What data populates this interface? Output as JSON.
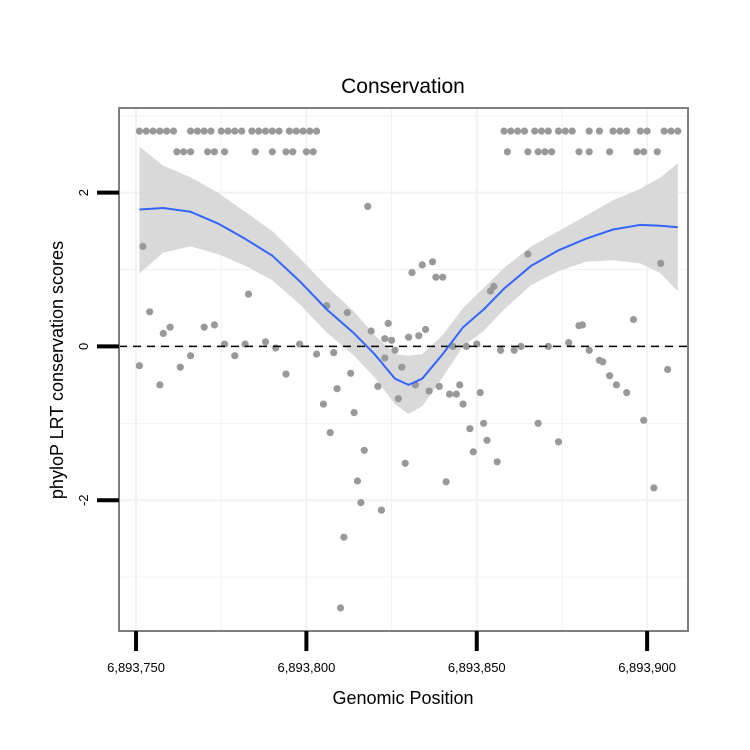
{
  "chart_data": {
    "type": "scatter",
    "title": "Conservation",
    "xlabel": "Genomic Position",
    "ylabel": "phyloP LRT conservation scores",
    "xlim": [
      6893745,
      6893912
    ],
    "ylim": [
      -3.7,
      3.1
    ],
    "x_ticks": [
      6893750,
      6893800,
      6893850,
      6893900
    ],
    "x_tick_labels": [
      "6,893,750",
      "6,893,800",
      "6,893,850",
      "6,893,900"
    ],
    "y_ticks": [
      -2,
      0,
      2
    ],
    "y_tick_labels": [
      "-2",
      "0",
      "2"
    ],
    "reference_line_y": 0,
    "colors": {
      "points": "#999999",
      "smooth_line": "#3366ff",
      "confidence_band": "#d9d9d9",
      "reference_line": "#000000",
      "panel_border": "#7f7f7f",
      "grid": "#f2f2f2"
    },
    "points": [
      {
        "x": 6893751,
        "y": 2.8
      },
      {
        "x": 6893753,
        "y": 2.8
      },
      {
        "x": 6893755,
        "y": 2.8
      },
      {
        "x": 6893757,
        "y": 2.8
      },
      {
        "x": 6893759,
        "y": 2.8
      },
      {
        "x": 6893761,
        "y": 2.8
      },
      {
        "x": 6893766,
        "y": 2.8
      },
      {
        "x": 6893768,
        "y": 2.8
      },
      {
        "x": 6893770,
        "y": 2.8
      },
      {
        "x": 6893772,
        "y": 2.8
      },
      {
        "x": 6893775,
        "y": 2.8
      },
      {
        "x": 6893777,
        "y": 2.8
      },
      {
        "x": 6893779,
        "y": 2.8
      },
      {
        "x": 6893781,
        "y": 2.8
      },
      {
        "x": 6893784,
        "y": 2.8
      },
      {
        "x": 6893786,
        "y": 2.8
      },
      {
        "x": 6893788,
        "y": 2.8
      },
      {
        "x": 6893790,
        "y": 2.8
      },
      {
        "x": 6893792,
        "y": 2.8
      },
      {
        "x": 6893795,
        "y": 2.8
      },
      {
        "x": 6893797,
        "y": 2.8
      },
      {
        "x": 6893799,
        "y": 2.8
      },
      {
        "x": 6893801,
        "y": 2.8
      },
      {
        "x": 6893803,
        "y": 2.8
      },
      {
        "x": 6893762,
        "y": 2.53
      },
      {
        "x": 6893764,
        "y": 2.53
      },
      {
        "x": 6893766,
        "y": 2.53
      },
      {
        "x": 6893771,
        "y": 2.53
      },
      {
        "x": 6893773,
        "y": 2.53
      },
      {
        "x": 6893776,
        "y": 2.53
      },
      {
        "x": 6893785,
        "y": 2.53
      },
      {
        "x": 6893790,
        "y": 2.53
      },
      {
        "x": 6893794,
        "y": 2.53
      },
      {
        "x": 6893796,
        "y": 2.53
      },
      {
        "x": 6893800,
        "y": 2.53
      },
      {
        "x": 6893802,
        "y": 2.53
      },
      {
        "x": 6893858,
        "y": 2.8
      },
      {
        "x": 6893860,
        "y": 2.8
      },
      {
        "x": 6893862,
        "y": 2.8
      },
      {
        "x": 6893864,
        "y": 2.8
      },
      {
        "x": 6893867,
        "y": 2.8
      },
      {
        "x": 6893869,
        "y": 2.8
      },
      {
        "x": 6893871,
        "y": 2.8
      },
      {
        "x": 6893874,
        "y": 2.8
      },
      {
        "x": 6893876,
        "y": 2.8
      },
      {
        "x": 6893878,
        "y": 2.8
      },
      {
        "x": 6893883,
        "y": 2.8
      },
      {
        "x": 6893886,
        "y": 2.8
      },
      {
        "x": 6893890,
        "y": 2.8
      },
      {
        "x": 6893892,
        "y": 2.8
      },
      {
        "x": 6893894,
        "y": 2.8
      },
      {
        "x": 6893898,
        "y": 2.8
      },
      {
        "x": 6893900,
        "y": 2.8
      },
      {
        "x": 6893905,
        "y": 2.8
      },
      {
        "x": 6893907,
        "y": 2.8
      },
      {
        "x": 6893909,
        "y": 2.8
      },
      {
        "x": 6893859,
        "y": 2.53
      },
      {
        "x": 6893865,
        "y": 2.53
      },
      {
        "x": 6893868,
        "y": 2.53
      },
      {
        "x": 6893870,
        "y": 2.53
      },
      {
        "x": 6893872,
        "y": 2.53
      },
      {
        "x": 6893880,
        "y": 2.53
      },
      {
        "x": 6893883,
        "y": 2.53
      },
      {
        "x": 6893889,
        "y": 2.53
      },
      {
        "x": 6893897,
        "y": 2.53
      },
      {
        "x": 6893899,
        "y": 2.53
      },
      {
        "x": 6893903,
        "y": 2.53
      },
      {
        "x": 6893752,
        "y": 1.3
      },
      {
        "x": 6893751,
        "y": -0.25
      },
      {
        "x": 6893754,
        "y": 0.45
      },
      {
        "x": 6893757,
        "y": -0.5
      },
      {
        "x": 6893758,
        "y": 0.17
      },
      {
        "x": 6893760,
        "y": 0.25
      },
      {
        "x": 6893763,
        "y": -0.27
      },
      {
        "x": 6893766,
        "y": -0.12
      },
      {
        "x": 6893770,
        "y": 0.25
      },
      {
        "x": 6893773,
        "y": 0.28
      },
      {
        "x": 6893776,
        "y": 0.03
      },
      {
        "x": 6893779,
        "y": -0.12
      },
      {
        "x": 6893782,
        "y": 0.03
      },
      {
        "x": 6893783,
        "y": 0.68
      },
      {
        "x": 6893788,
        "y": 0.06
      },
      {
        "x": 6893791,
        "y": -0.02
      },
      {
        "x": 6893794,
        "y": -0.36
      },
      {
        "x": 6893798,
        "y": 0.03
      },
      {
        "x": 6893803,
        "y": -0.1
      },
      {
        "x": 6893805,
        "y": -0.75
      },
      {
        "x": 6893806,
        "y": 0.53
      },
      {
        "x": 6893807,
        "y": -1.12
      },
      {
        "x": 6893808,
        "y": -0.08
      },
      {
        "x": 6893809,
        "y": -0.55
      },
      {
        "x": 6893810,
        "y": -3.4
      },
      {
        "x": 6893811,
        "y": -2.48
      },
      {
        "x": 6893812,
        "y": 0.44
      },
      {
        "x": 6893813,
        "y": -0.35
      },
      {
        "x": 6893814,
        "y": -0.86
      },
      {
        "x": 6893815,
        "y": -1.75
      },
      {
        "x": 6893816,
        "y": -2.03
      },
      {
        "x": 6893817,
        "y": -1.35
      },
      {
        "x": 6893818,
        "y": 1.82
      },
      {
        "x": 6893819,
        "y": 0.2
      },
      {
        "x": 6893821,
        "y": -0.52
      },
      {
        "x": 6893822,
        "y": -2.13
      },
      {
        "x": 6893823,
        "y": 0.1
      },
      {
        "x": 6893823,
        "y": -0.15
      },
      {
        "x": 6893824,
        "y": 0.3
      },
      {
        "x": 6893825,
        "y": 0.08
      },
      {
        "x": 6893826,
        "y": -0.05
      },
      {
        "x": 6893827,
        "y": -0.68
      },
      {
        "x": 6893828,
        "y": -0.27
      },
      {
        "x": 6893829,
        "y": -1.52
      },
      {
        "x": 6893830,
        "y": 0.12
      },
      {
        "x": 6893831,
        "y": 0.96
      },
      {
        "x": 6893832,
        "y": -0.5
      },
      {
        "x": 6893833,
        "y": 0.14
      },
      {
        "x": 6893834,
        "y": 1.06
      },
      {
        "x": 6893835,
        "y": 0.22
      },
      {
        "x": 6893836,
        "y": -0.58
      },
      {
        "x": 6893837,
        "y": 1.1
      },
      {
        "x": 6893838,
        "y": 0.9
      },
      {
        "x": 6893839,
        "y": -0.52
      },
      {
        "x": 6893840,
        "y": 0.9
      },
      {
        "x": 6893841,
        "y": -1.76
      },
      {
        "x": 6893842,
        "y": -0.62
      },
      {
        "x": 6893843,
        "y": 0.0
      },
      {
        "x": 6893844,
        "y": -0.62
      },
      {
        "x": 6893845,
        "y": -0.5
      },
      {
        "x": 6893846,
        "y": -0.75
      },
      {
        "x": 6893847,
        "y": 0.0
      },
      {
        "x": 6893848,
        "y": -1.07
      },
      {
        "x": 6893849,
        "y": -1.37
      },
      {
        "x": 6893850,
        "y": 0.03
      },
      {
        "x": 6893851,
        "y": -0.6
      },
      {
        "x": 6893852,
        "y": -1.0
      },
      {
        "x": 6893853,
        "y": -1.22
      },
      {
        "x": 6893854,
        "y": 0.72
      },
      {
        "x": 6893855,
        "y": 0.78
      },
      {
        "x": 6893856,
        "y": -1.5
      },
      {
        "x": 6893857,
        "y": -0.05
      },
      {
        "x": 6893861,
        "y": -0.05
      },
      {
        "x": 6893863,
        "y": 0.0
      },
      {
        "x": 6893865,
        "y": 1.2
      },
      {
        "x": 6893868,
        "y": -1.0
      },
      {
        "x": 6893871,
        "y": 0.0
      },
      {
        "x": 6893874,
        "y": -1.24
      },
      {
        "x": 6893877,
        "y": 0.05
      },
      {
        "x": 6893880,
        "y": 0.27
      },
      {
        "x": 6893881,
        "y": 0.28
      },
      {
        "x": 6893883,
        "y": -0.05
      },
      {
        "x": 6893886,
        "y": -0.18
      },
      {
        "x": 6893887,
        "y": -0.2
      },
      {
        "x": 6893889,
        "y": -0.38
      },
      {
        "x": 6893891,
        "y": -0.5
      },
      {
        "x": 6893894,
        "y": -0.6
      },
      {
        "x": 6893896,
        "y": 0.35
      },
      {
        "x": 6893899,
        "y": -0.96
      },
      {
        "x": 6893902,
        "y": -1.84
      },
      {
        "x": 6893904,
        "y": 1.08
      },
      {
        "x": 6893906,
        "y": -0.3
      }
    ],
    "smooth": {
      "x": [
        6893751,
        6893758,
        6893766,
        6893774,
        6893782,
        6893790,
        6893798,
        6893806,
        6893814,
        6893820,
        6893826,
        6893830,
        6893834,
        6893840,
        6893846,
        6893852,
        6893858,
        6893866,
        6893874,
        6893882,
        6893890,
        6893898,
        6893904,
        6893909
      ],
      "y": [
        1.78,
        1.8,
        1.75,
        1.6,
        1.4,
        1.18,
        0.85,
        0.48,
        0.17,
        -0.1,
        -0.42,
        -0.5,
        -0.42,
        -0.1,
        0.25,
        0.48,
        0.75,
        1.05,
        1.25,
        1.4,
        1.52,
        1.58,
        1.57,
        1.55
      ],
      "upper": [
        2.6,
        2.35,
        2.2,
        2.0,
        1.75,
        1.5,
        1.15,
        0.78,
        0.45,
        0.15,
        -0.1,
        -0.12,
        -0.1,
        0.15,
        0.5,
        0.76,
        1.02,
        1.3,
        1.5,
        1.7,
        1.9,
        2.05,
        2.2,
        2.38
      ],
      "lower": [
        0.95,
        1.22,
        1.3,
        1.2,
        1.05,
        0.86,
        0.55,
        0.18,
        -0.12,
        -0.4,
        -0.75,
        -0.88,
        -0.78,
        -0.4,
        0.0,
        0.2,
        0.48,
        0.8,
        0.98,
        1.1,
        1.12,
        1.08,
        0.95,
        0.72
      ]
    }
  }
}
